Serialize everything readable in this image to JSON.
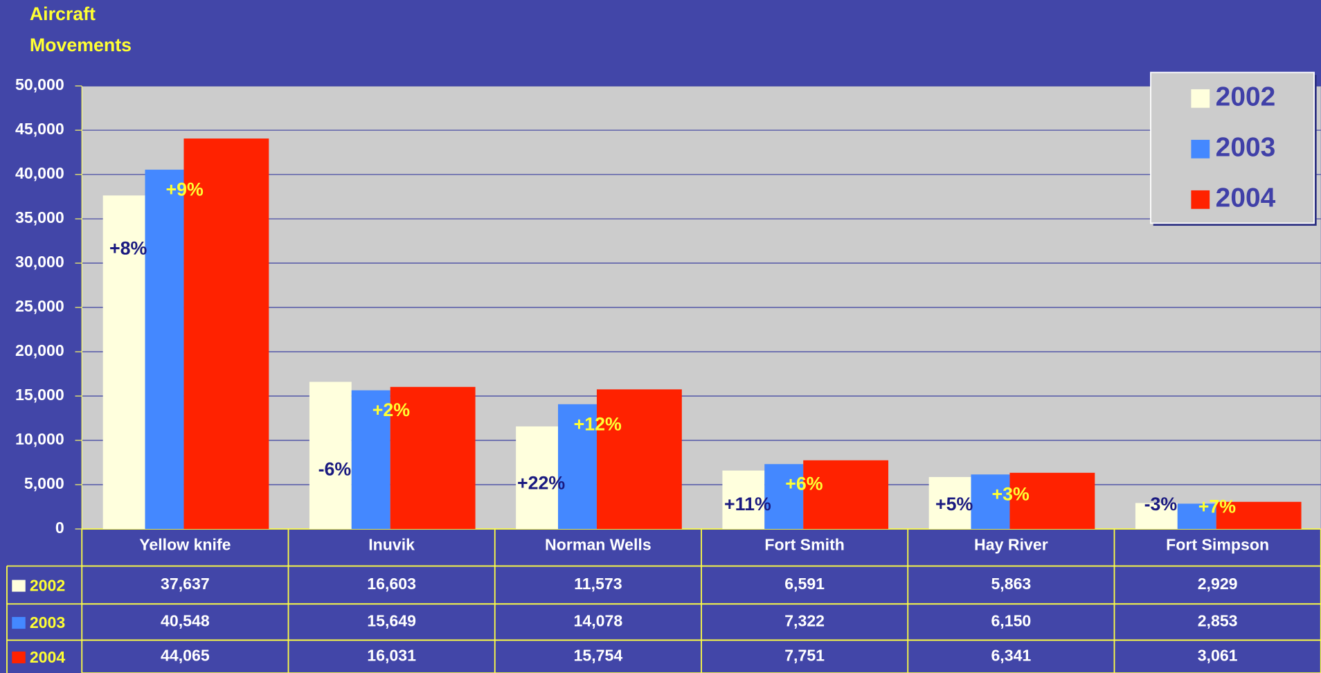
{
  "chart_data": {
    "type": "bar",
    "title": "Aircraft Movements",
    "categories": [
      "Yellow knife",
      "Inuvik",
      "Norman Wells",
      "Fort Smith",
      "Hay River",
      "Fort Simpson"
    ],
    "series": [
      {
        "name": "2002",
        "color": "#ffffdd",
        "values": [
          37637,
          16603,
          11573,
          6591,
          5863,
          2929
        ],
        "value_labels": [
          "37,637",
          "16,603",
          "11,573",
          "6,591",
          "5,863",
          "2,929"
        ]
      },
      {
        "name": "2003",
        "color": "#4488ff",
        "values": [
          40548,
          15649,
          14078,
          7322,
          6150,
          2853
        ],
        "value_labels": [
          "40,548",
          "15,649",
          "14,078",
          "7,322",
          "6,150",
          "2,853"
        ]
      },
      {
        "name": "2004",
        "color": "#ff2200",
        "values": [
          44065,
          16031,
          15754,
          7751,
          6341,
          3061
        ],
        "value_labels": [
          "44,065",
          "16,031",
          "15,754",
          "7,751",
          "6,341",
          "3,061"
        ]
      }
    ],
    "change_2003": [
      "+8%",
      "-6%",
      "+22%",
      "+11%",
      "+5%",
      "-3%"
    ],
    "change_2004": [
      "+9%",
      "+2%",
      "+12%",
      "+6%",
      "+3%",
      "+7%"
    ],
    "ylim": [
      0,
      50000
    ],
    "yticks": [
      0,
      {
        "value": 5000,
        "label": "5,000"
      },
      {
        "value": 10000,
        "label": "10,000"
      },
      {
        "value": 15000,
        "label": "15,000"
      },
      {
        "value": 20000,
        "label": "20,000"
      },
      {
        "value": 25000,
        "label": "25,000"
      },
      {
        "value": 30000,
        "label": "30,000"
      },
      {
        "value": 35000,
        "label": "35,000"
      },
      {
        "value": 40000,
        "label": "40,000"
      },
      {
        "value": 45000,
        "label": "45,000"
      },
      {
        "value": 50000,
        "label": "50,000"
      }
    ],
    "grid": true,
    "legend": "top-right"
  }
}
